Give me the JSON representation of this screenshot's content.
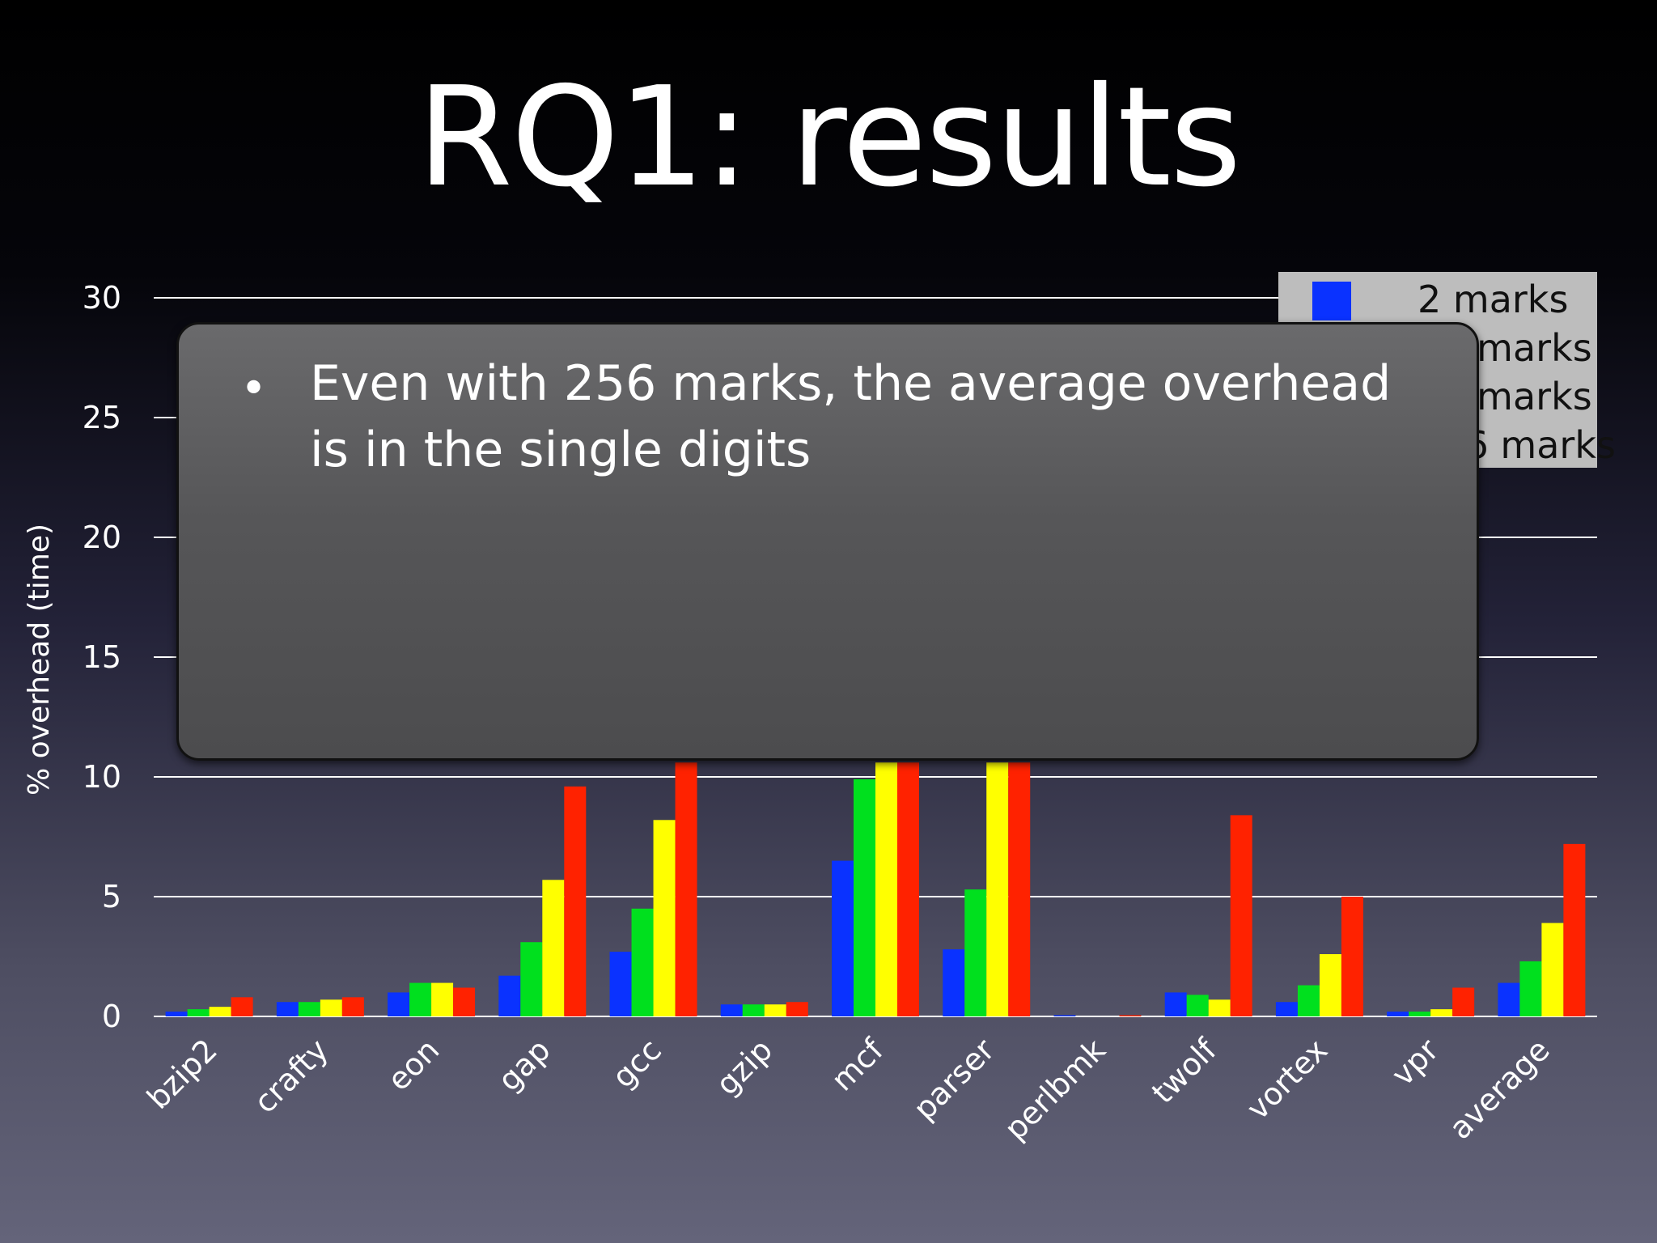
{
  "slide": {
    "title": "RQ1: results"
  },
  "callout": {
    "bullet": "•",
    "text": "Even with 256 marks, the average overhead is in the single digits"
  },
  "legend": {
    "items": [
      {
        "label": "2 marks",
        "color": "#0a32ff"
      },
      {
        "label": "16 marks",
        "color": "#00e01e"
      },
      {
        "label": "64 marks",
        "color": "#ffff00"
      },
      {
        "label": "256 marks",
        "color": "#ff2200"
      }
    ]
  },
  "chart_data": {
    "type": "bar",
    "ylabel": "% overhead (time)",
    "xlabel": "",
    "ylim": [
      0,
      30
    ],
    "yticks": [
      0,
      5,
      10,
      15,
      20,
      25,
      30
    ],
    "grid": true,
    "legend_position": "top-right",
    "categories": [
      "bzip2",
      "crafty",
      "eon",
      "gap",
      "gcc",
      "gzip",
      "mcf",
      "parser",
      "perlbmk",
      "twolf",
      "vortex",
      "vpr",
      "average"
    ],
    "series": [
      {
        "name": "2 marks",
        "color": "#0a32ff",
        "values": [
          0.2,
          0.6,
          1.0,
          1.7,
          2.7,
          0.5,
          6.5,
          2.8,
          0.05,
          1.0,
          0.6,
          0.2,
          1.4
        ]
      },
      {
        "name": "16 marks",
        "color": "#00e01e",
        "values": [
          0.3,
          0.6,
          1.4,
          3.1,
          4.5,
          0.5,
          9.9,
          5.3,
          0.0,
          0.9,
          1.3,
          0.2,
          2.3
        ]
      },
      {
        "name": "64 marks",
        "color": "#ffff00",
        "values": [
          0.4,
          0.7,
          1.4,
          5.7,
          8.2,
          0.5,
          10.6,
          10.6,
          0.0,
          0.7,
          2.6,
          0.3,
          3.9
        ]
      },
      {
        "name": "256 marks",
        "color": "#ff2200",
        "values": [
          0.8,
          0.8,
          1.2,
          9.6,
          10.6,
          0.6,
          10.6,
          10.6,
          0.05,
          8.4,
          5.0,
          1.2,
          7.2
        ]
      }
    ]
  }
}
